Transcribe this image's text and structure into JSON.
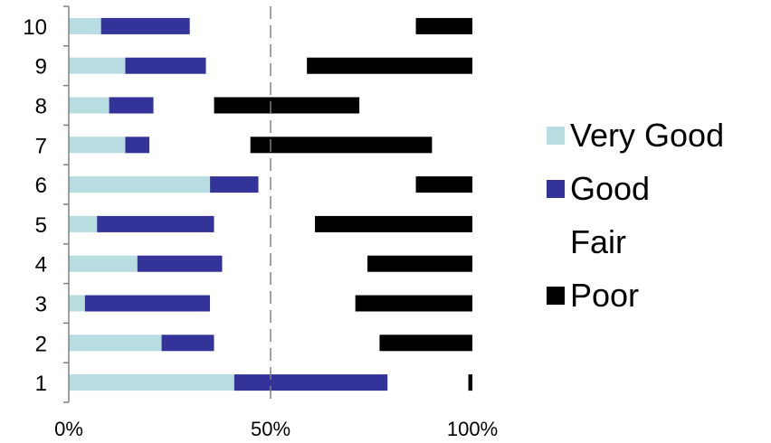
{
  "chart_data": {
    "type": "bar",
    "orientation": "horizontal",
    "stacked": "percent",
    "categories": [
      "1",
      "2",
      "3",
      "4",
      "5",
      "6",
      "7",
      "8",
      "9",
      "10"
    ],
    "series": [
      {
        "name": "Very Good",
        "color": "#b7dde1",
        "values": [
          41,
          23,
          4,
          17,
          7,
          35,
          14,
          10,
          14,
          8
        ]
      },
      {
        "name": "Good",
        "color": "#333399",
        "values": [
          38,
          13,
          31,
          21,
          29,
          12,
          6,
          11,
          20,
          22
        ]
      },
      {
        "name": "Fair",
        "color": "#ffffff",
        "values": [
          20,
          41,
          36,
          36,
          25,
          39,
          25,
          15,
          25,
          56
        ]
      },
      {
        "name": "Poor",
        "color": "#000000",
        "values": [
          1,
          23,
          29,
          26,
          39,
          14,
          45,
          36,
          41,
          14
        ]
      }
    ],
    "x_ticks": [
      "0%",
      "50%",
      "100%"
    ],
    "xlim": [
      0,
      100
    ],
    "reference_line": {
      "value": 50,
      "style": "dashed",
      "color": "#808080"
    },
    "grid": false,
    "legend_position": "right"
  }
}
